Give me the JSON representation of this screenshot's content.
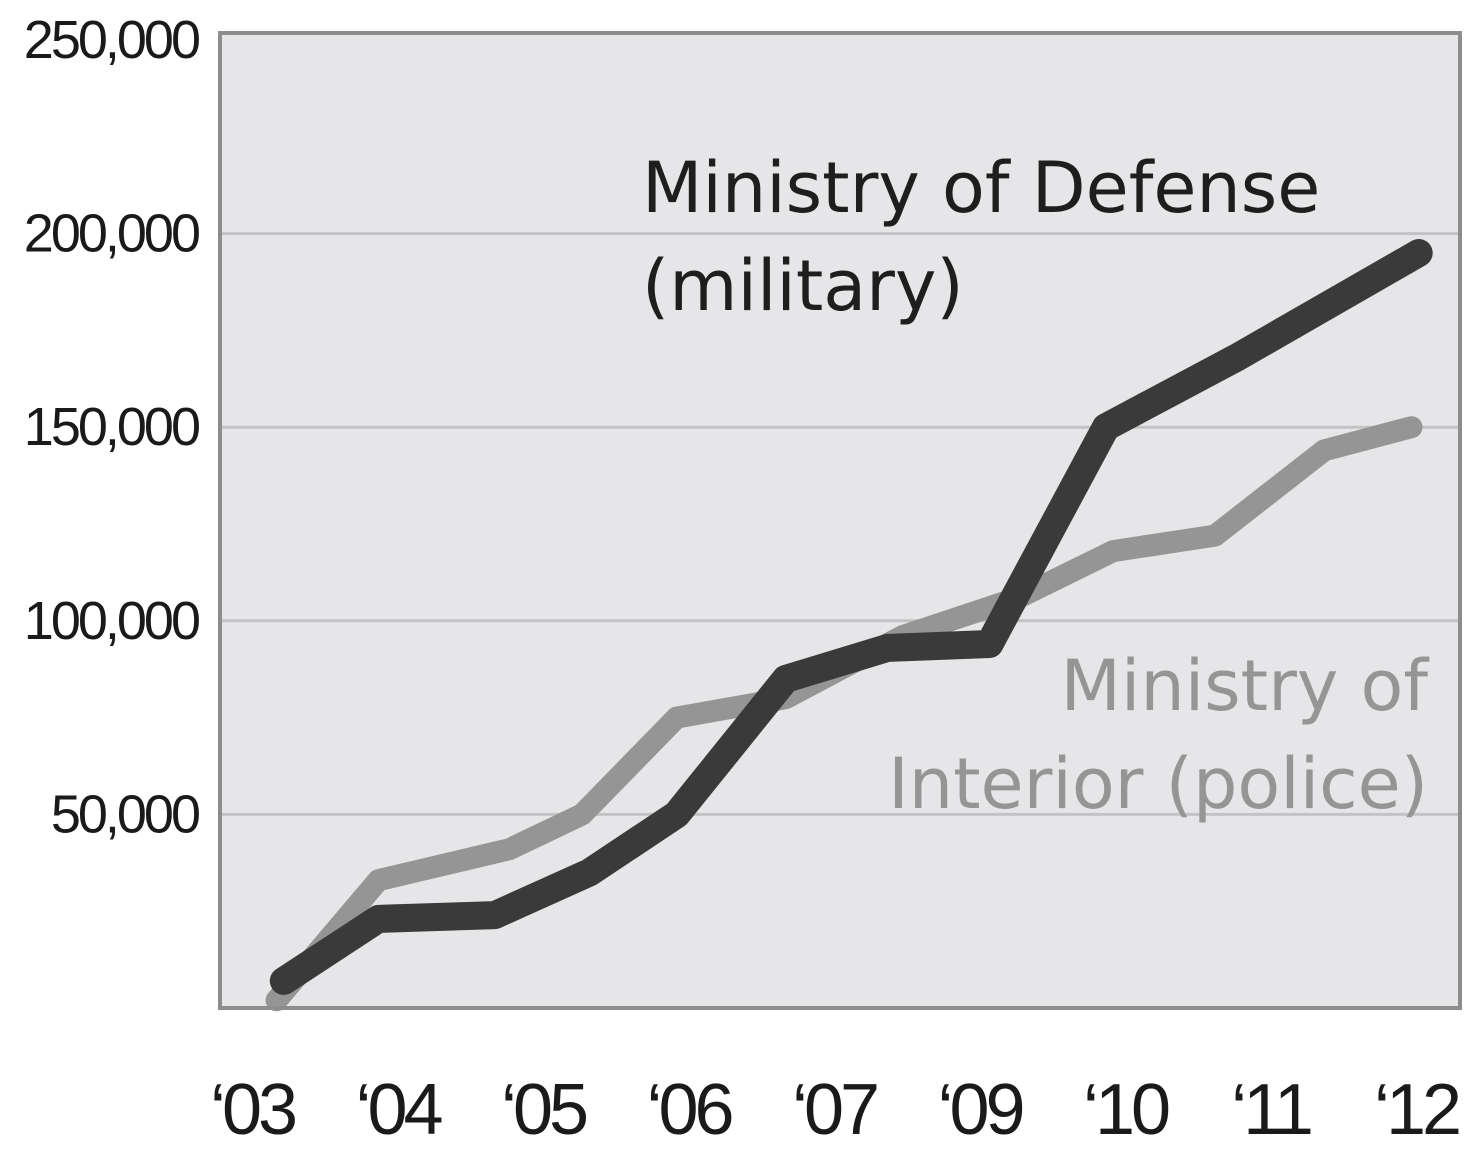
{
  "chart_data": {
    "type": "line",
    "title": "",
    "xlabel": "",
    "ylabel": "",
    "categories": [
      "‘03",
      "‘04",
      "‘05",
      "‘06",
      "‘07",
      "‘09",
      "‘10",
      "‘11",
      "‘12"
    ],
    "y_ticks": [
      "50,000",
      "100,000",
      "150,000",
      "200,000",
      "250,000"
    ],
    "ylim": [
      0,
      250000
    ],
    "grid": true,
    "series": [
      {
        "name": "Ministry of Interior (police)",
        "color": "#959595",
        "points": [
          {
            "x": 0.1,
            "y": 2000
          },
          {
            "x": 0.8,
            "y": 33000
          },
          {
            "x": 1.7,
            "y": 41000
          },
          {
            "x": 2.2,
            "y": 50000
          },
          {
            "x": 2.85,
            "y": 75000
          },
          {
            "x": 3.6,
            "y": 80000
          },
          {
            "x": 4.4,
            "y": 96000
          },
          {
            "x": 5.2,
            "y": 106000
          },
          {
            "x": 5.85,
            "y": 118000
          },
          {
            "x": 6.55,
            "y": 122000
          },
          {
            "x": 7.3,
            "y": 144000
          },
          {
            "x": 7.9,
            "y": 150000
          }
        ]
      },
      {
        "name": "Ministry of Defense (military)",
        "color": "#3a3a3a",
        "points": [
          {
            "x": 0.15,
            "y": 7000
          },
          {
            "x": 0.8,
            "y": 23000
          },
          {
            "x": 1.6,
            "y": 24000
          },
          {
            "x": 2.25,
            "y": 35000
          },
          {
            "x": 2.85,
            "y": 50000
          },
          {
            "x": 3.6,
            "y": 85000
          },
          {
            "x": 4.3,
            "y": 93000
          },
          {
            "x": 5.0,
            "y": 94000
          },
          {
            "x": 5.8,
            "y": 150000
          },
          {
            "x": 6.7,
            "y": 168000
          },
          {
            "x": 7.95,
            "y": 195000
          }
        ]
      }
    ],
    "annotations": {
      "defense_line1": "Ministry of Defense",
      "defense_line2": "(military)",
      "interior_line1": "Ministry of",
      "interior_line2": "Interior (police)"
    }
  }
}
